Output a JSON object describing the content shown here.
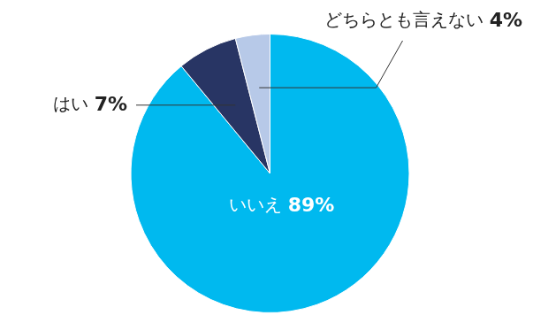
{
  "chart_data": {
    "type": "pie",
    "categories": [
      "いいえ",
      "はい",
      "どちらとも言えない"
    ],
    "values": [
      89,
      7,
      4
    ],
    "value_labels": [
      "89%",
      "7%",
      "4%"
    ],
    "colors": [
      "#00b9ef",
      "#283564",
      "#b7c9e8"
    ],
    "data_labels": true
  }
}
